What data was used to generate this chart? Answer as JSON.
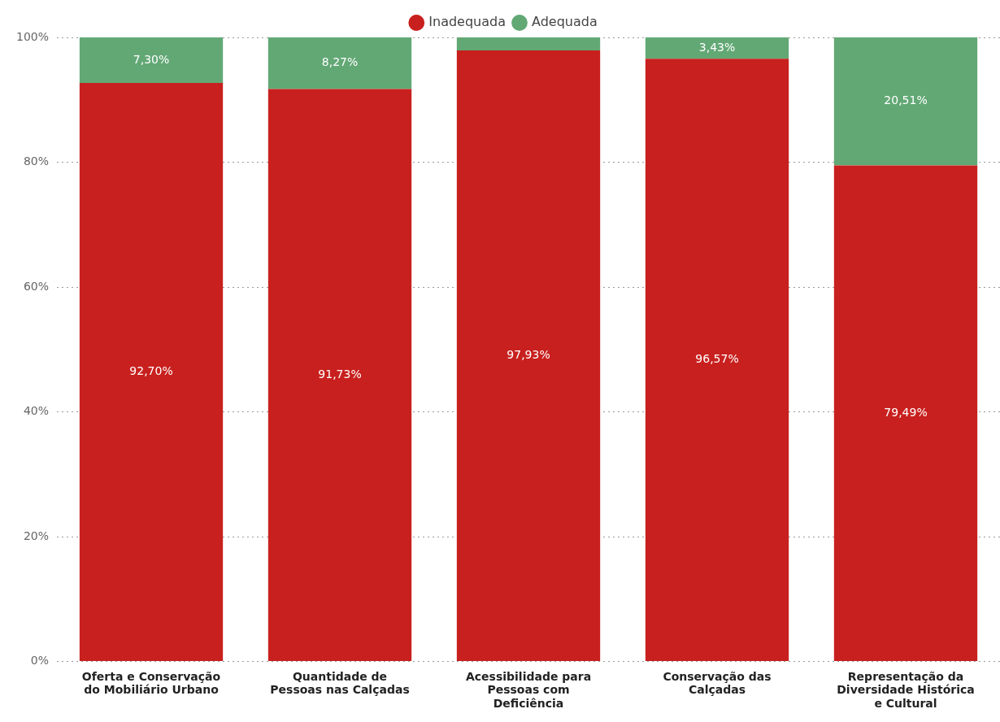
{
  "chart_data": {
    "type": "bar",
    "stacked": true,
    "legend": "top",
    "grid": "y",
    "categories": [
      "Oferta e Conservação\ndo Mobiliário Urbano",
      "Quantidade de\nPessoas nas Calçadas",
      "Acessibilidade para\nPessoas com\nDeficiência",
      "Conservação das\nCalçadas",
      "Representação da\nDiversidade Histórica\ne Cultural"
    ],
    "ylim": [
      0,
      100
    ],
    "yticks": [
      {
        "value": 0,
        "label": "0%"
      },
      {
        "value": 20,
        "label": "20%"
      },
      {
        "value": 40,
        "label": "40%"
      },
      {
        "value": 60,
        "label": "60%"
      },
      {
        "value": 80,
        "label": "80%"
      },
      {
        "value": 100,
        "label": "100%"
      }
    ],
    "series": [
      {
        "name": "Inadequada",
        "color": "#c8201e",
        "values": [
          92.7,
          91.73,
          97.93,
          96.57,
          79.49
        ],
        "value_labels": [
          "92,70%",
          "91,73%",
          "97,93%",
          "96,57%",
          "79,49%"
        ]
      },
      {
        "name": "Adequada",
        "color": "#62a875",
        "values": [
          7.3,
          8.27,
          2.07,
          3.43,
          20.51
        ],
        "value_labels": [
          "7,30%",
          "8,27%",
          null,
          "3,43%",
          "20,51%"
        ]
      }
    ]
  }
}
